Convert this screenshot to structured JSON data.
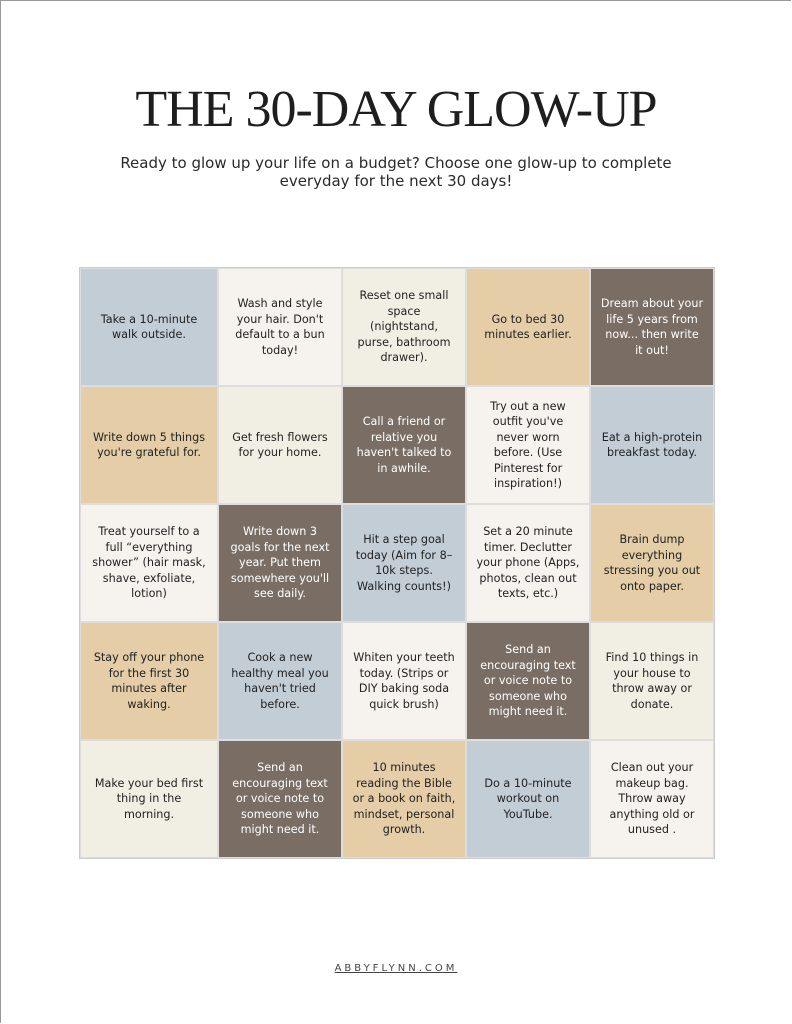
{
  "header": {
    "title": "THE 30-DAY GLOW-UP",
    "subtitle": "Ready to glow up your life on a budget? Choose one glow-up to complete everyday for the next 30 days!"
  },
  "grid": {
    "rows": [
      [
        {
          "text": "Take a 10-minute walk outside.",
          "color": "#c3cdd6"
        },
        {
          "text": "Wash and style your hair. Don't default to a bun today!",
          "color": "#f6f2ee"
        },
        {
          "text": "Reset one small space (nightstand, purse, bathroom drawer).",
          "color": "#f1efe3"
        },
        {
          "text": "Go to bed 30 minutes earlier.",
          "color": "#e4cda7"
        },
        {
          "text": "Dream about your life 5 years from now... then write it out!",
          "color": "#7a6e64"
        }
      ],
      [
        {
          "text": "Write down 5 things you're grateful for.",
          "color": "#e4cda7"
        },
        {
          "text": "Get fresh flowers for your home.",
          "color": "#f1efe3"
        },
        {
          "text": "Call a friend or relative you haven't talked to in awhile.",
          "color": "#7a6e64"
        },
        {
          "text": "Try out a new outfit you've never worn before. (Use Pinterest for inspiration!)",
          "color": "#f6f2ee"
        },
        {
          "text": "Eat a high-protein breakfast today.",
          "color": "#c3cdd6"
        }
      ],
      [
        {
          "text": "Treat yourself to a full “everything shower” (hair mask, shave, exfoliate, lotion)",
          "color": "#f6f2ee"
        },
        {
          "text": "Write down 3 goals for the next year. Put them somewhere you'll see daily.",
          "color": "#7a6e64"
        },
        {
          "text": "Hit a step goal today (Aim for 8–10k steps. Walking counts!)",
          "color": "#c3cdd6"
        },
        {
          "text": "Set a 20 minute timer. Declutter your phone (Apps, photos, clean out texts, etc.)",
          "color": "#f6f2ee"
        },
        {
          "text": "Brain dump everything stressing you out onto paper.",
          "color": "#e4cda7"
        }
      ],
      [
        {
          "text": "Stay off your phone for the first 30 minutes after waking.",
          "color": "#e4cda7"
        },
        {
          "text": "Cook a new healthy meal you haven't tried before.",
          "color": "#c3cdd6"
        },
        {
          "text": "Whiten your teeth today. (Strips or DIY baking soda quick brush)",
          "color": "#f6f2ee"
        },
        {
          "text": "Send an encouraging text or voice note to someone who might need it.",
          "color": "#7a6e64"
        },
        {
          "text": "Find 10 things in your house to throw away or donate.",
          "color": "#f1efe3"
        }
      ],
      [
        {
          "text": "Make your bed first thing in the morning.",
          "color": "#f1efe3"
        },
        {
          "text": "Send an encouraging text or voice note to someone who might need it.",
          "color": "#7a6e64"
        },
        {
          "text": "10 minutes reading the Bible or a book on faith, mindset, personal growth.",
          "color": "#e4cda7"
        },
        {
          "text": "Do a 10-minute workout on YouTube.",
          "color": "#c3cdd6"
        },
        {
          "text": "Clean out your makeup bag. Throw away anything old or unused .",
          "color": "#f6f2ee"
        }
      ]
    ]
  },
  "footer": {
    "site": "ABBYFLYNN.COM"
  }
}
